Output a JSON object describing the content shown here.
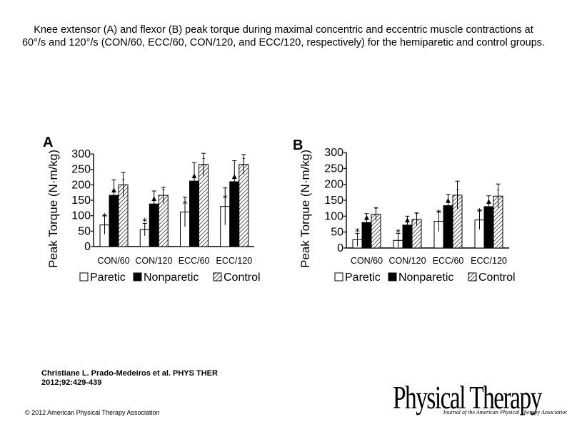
{
  "title": "Knee extensor (A) and flexor (B) peak torque during maximal concentric and eccentric muscle contractions at 60°/s and 120°/s (CON/60, ECC/60, CON/120, and ECC/120, respectively) for the hemiparetic and control groups.",
  "legend": {
    "paretic": "Paretic",
    "nonparetic": "Nonparetic",
    "control": "Control"
  },
  "citation": {
    "line1": "Christiane L. Prado-Medeiros et al. PHYS THER",
    "line2": "2012;92:429-439"
  },
  "copyright": "© 2012 American Physical Therapy Association",
  "logo": {
    "main": "Physical Therapy",
    "sub": "Journal of the American Physical Therapy Association"
  },
  "colors": {
    "paretic": "#ffffff",
    "nonparetic": "#000000",
    "control": "hatched"
  },
  "symbols": {
    "paretic_marker": "*",
    "nonparetic_marker": "▲",
    "control_marker": "†"
  },
  "chart_data": [
    {
      "type": "bar",
      "panel": "A",
      "ylabel": "Peak Torque (N·m/kg)",
      "ylim": [
        0,
        300
      ],
      "yticks": [
        "0",
        "50",
        "100",
        "150",
        "200",
        "250",
        "300"
      ],
      "categories": [
        "CON/60",
        "CON/120",
        "ECC/60",
        "ECC/120"
      ],
      "series": [
        {
          "name": "Paretic",
          "values": [
            70,
            55,
            112,
            130
          ],
          "errors": [
            30,
            20,
            48,
            60
          ]
        },
        {
          "name": "Nonparetic",
          "values": [
            166,
            138,
            212,
            210
          ],
          "errors": [
            50,
            42,
            60,
            68
          ]
        },
        {
          "name": "Control",
          "values": [
            200,
            166,
            266,
            266
          ],
          "errors": [
            40,
            26,
            36,
            32
          ]
        }
      ]
    },
    {
      "type": "bar",
      "panel": "B",
      "ylabel": "Peak Torque (N·m/kg)",
      "ylim": [
        0,
        300
      ],
      "yticks": [
        "0",
        "50",
        "100",
        "150",
        "200",
        "250",
        "300"
      ],
      "categories": [
        "CON/60",
        "CON/120",
        "ECC/60",
        "ECC/120"
      ],
      "series": [
        {
          "name": "Paretic",
          "values": [
            26,
            24,
            84,
            88
          ],
          "errors": [
            20,
            22,
            32,
            30
          ]
        },
        {
          "name": "Nonparetic",
          "values": [
            80,
            72,
            133,
            130
          ],
          "errors": [
            28,
            28,
            36,
            34
          ]
        },
        {
          "name": "Control",
          "values": [
            106,
            90,
            166,
            163
          ],
          "errors": [
            20,
            20,
            44,
            38
          ]
        }
      ]
    }
  ]
}
